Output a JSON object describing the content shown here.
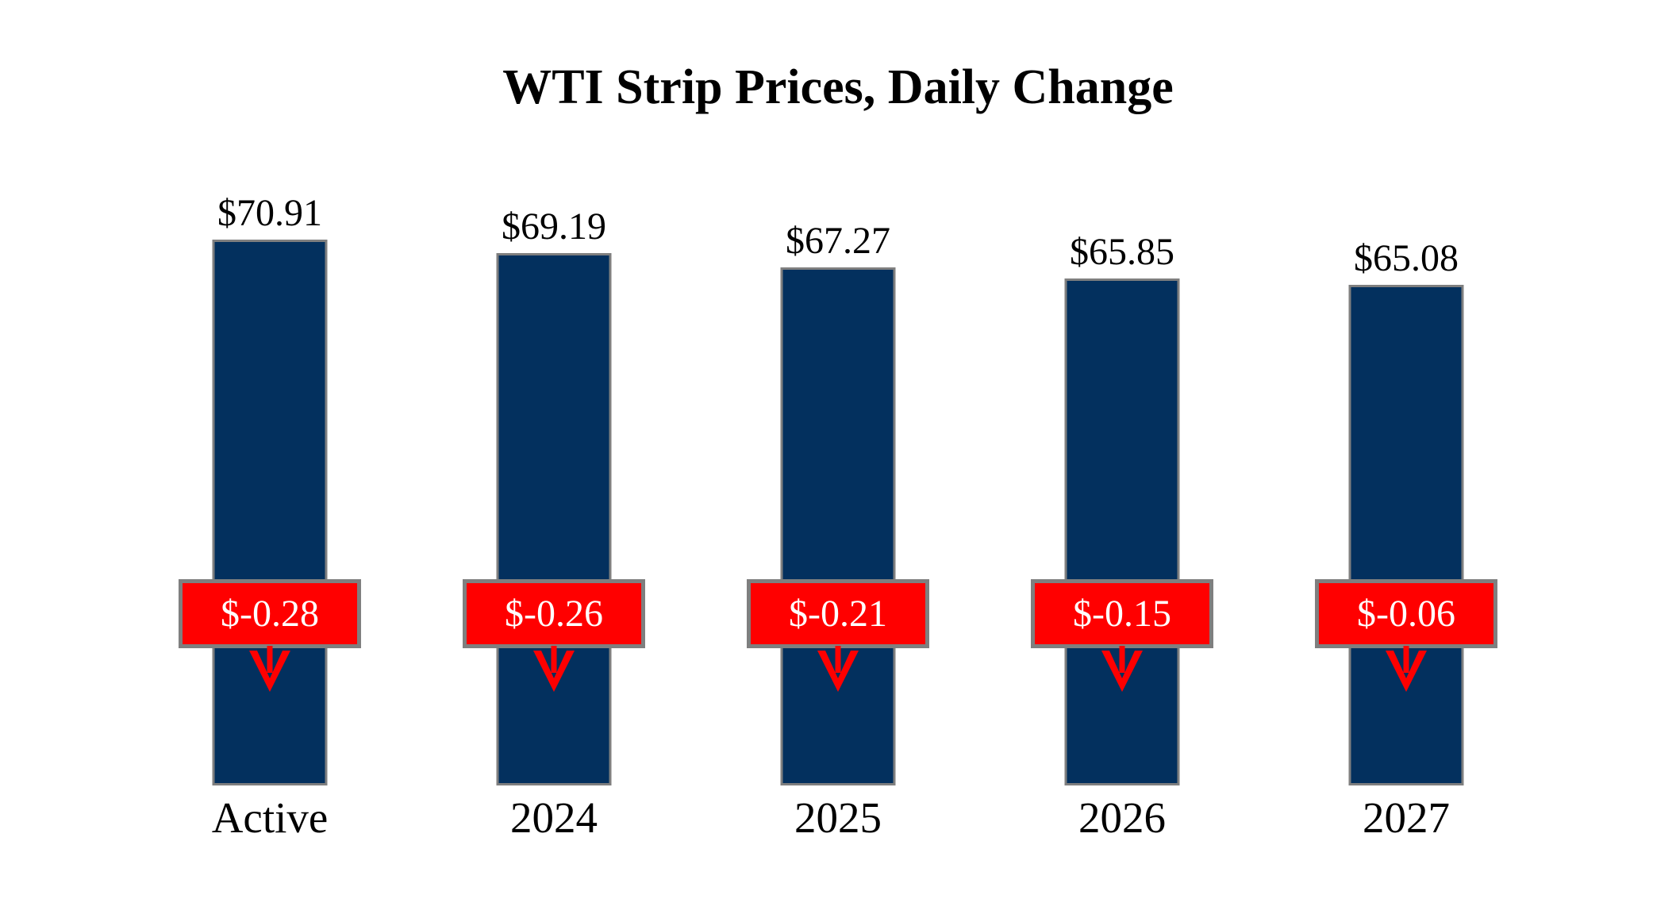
{
  "chart_data": {
    "type": "bar",
    "title": "WTI Strip Prices, Daily Change",
    "categories": [
      "Active",
      "2024",
      "2025",
      "2026",
      "2027"
    ],
    "series": [
      {
        "name": "strip_price_usd_per_bbl",
        "values": [
          70.91,
          69.19,
          67.27,
          65.85,
          65.08
        ]
      },
      {
        "name": "daily_change_usd_per_bbl",
        "values": [
          -0.28,
          -0.26,
          -0.21,
          -0.15,
          -0.06
        ]
      }
    ],
    "value_labels": [
      "$70.91",
      "$69.19",
      "$67.27",
      "$65.85",
      "$65.08"
    ],
    "change_labels": [
      "$-0.28",
      "$-0.26",
      "$-0.21",
      "$-0.15",
      "$-0.06"
    ],
    "xlabel": "",
    "ylabel": "",
    "ylim": [
      0,
      78.4
    ],
    "grid": false,
    "legend": "none",
    "axes_visible": false,
    "colors": {
      "bar_fill": "#03305E",
      "bar_border": "#7F7F7F",
      "change_box_fill": "#FF0000",
      "change_box_border": "#7F7F7F",
      "change_text": "#FFFFFF",
      "arrow": "#FF0000",
      "label_text": "#000000",
      "background": "#FFFFFF"
    }
  }
}
